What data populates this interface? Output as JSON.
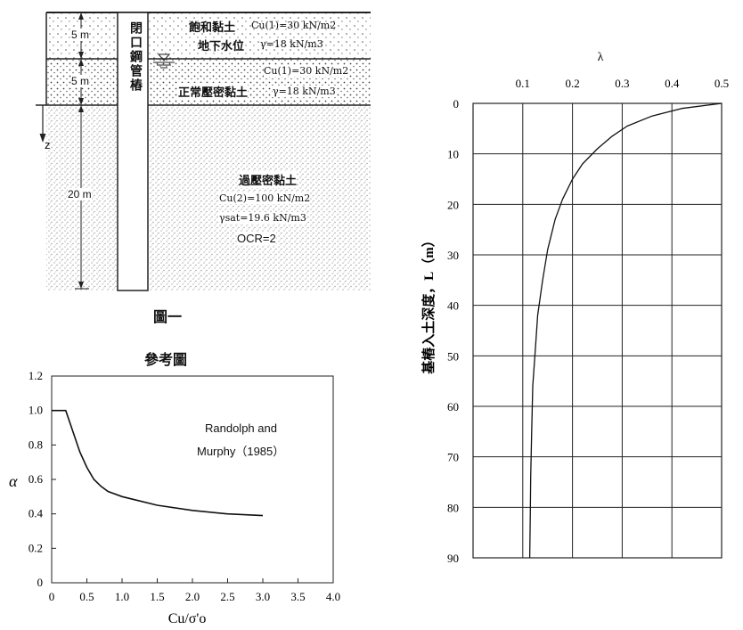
{
  "figure1": {
    "caption": "圖一",
    "layers": [
      {
        "thickness_label": "5 m",
        "name": "飽和黏土",
        "cu": "Cu(1)=30 kN/m2",
        "gamma": "γ=18 kN/m3",
        "extra": "地下水位"
      },
      {
        "thickness_label": "5 m",
        "name": "正常壓密黏土",
        "cu": "Cu(1)=30 kN/m2",
        "gamma": "γ=18 kN/m3"
      },
      {
        "thickness_label": "20 m",
        "name": "過壓密黏土",
        "cu": "Cu(2)=100 kN/m2",
        "gamma": "γsat=19.6 kN/m3",
        "ocr": "OCR=2"
      }
    ],
    "pile_label": "閉口鋼管樁",
    "z_axis": "z"
  },
  "ref_chart": {
    "title": "參考圖",
    "annotation_line1": "Randolph and",
    "annotation_line2": "Murphy（1985）",
    "chart_data": {
      "type": "line",
      "xlabel": "Cu/σ'o",
      "ylabel": "α",
      "xlim": [
        0,
        4.0
      ],
      "ylim": [
        0,
        1.2
      ],
      "xticks": [
        "0",
        "0.5",
        "1.0",
        "1.5",
        "2.0",
        "2.5",
        "3.0",
        "3.5",
        "4.0"
      ],
      "yticks": [
        "0",
        "0.2",
        "0.4",
        "0.6",
        "0.8",
        "1.0",
        "1.2"
      ],
      "series": [
        {
          "x": [
            0,
            0.2,
            0.3,
            0.4,
            0.5,
            0.6,
            0.7,
            0.8,
            1.0,
            1.2,
            1.5,
            2.0,
            2.5,
            3.0
          ],
          "y": [
            1.0,
            1.0,
            0.88,
            0.76,
            0.67,
            0.6,
            0.56,
            0.53,
            0.5,
            0.48,
            0.45,
            0.42,
            0.4,
            0.39
          ]
        }
      ]
    }
  },
  "lambda_chart": {
    "chart_data": {
      "type": "line",
      "xlabel": "λ",
      "ylabel": "基樁入土深度，L（m）",
      "xlim": [
        0,
        0.5
      ],
      "ylim": [
        0,
        90
      ],
      "xticks": [
        "0.1",
        "0.2",
        "0.3",
        "0.4",
        "0.5"
      ],
      "yticks": [
        "0",
        "10",
        "20",
        "30",
        "40",
        "50",
        "60",
        "70",
        "80",
        "90"
      ],
      "series": [
        {
          "x": [
            0.5,
            0.42,
            0.36,
            0.31,
            0.28,
            0.25,
            0.22,
            0.2,
            0.18,
            0.165,
            0.15,
            0.14,
            0.13,
            0.125,
            0.12,
            0.118,
            0.116,
            0.115,
            0.114
          ],
          "L": [
            0,
            1,
            2.5,
            4.5,
            6.5,
            9,
            12,
            15,
            19,
            23,
            29,
            35,
            42,
            49,
            56,
            65,
            74,
            82,
            90
          ]
        }
      ]
    }
  }
}
